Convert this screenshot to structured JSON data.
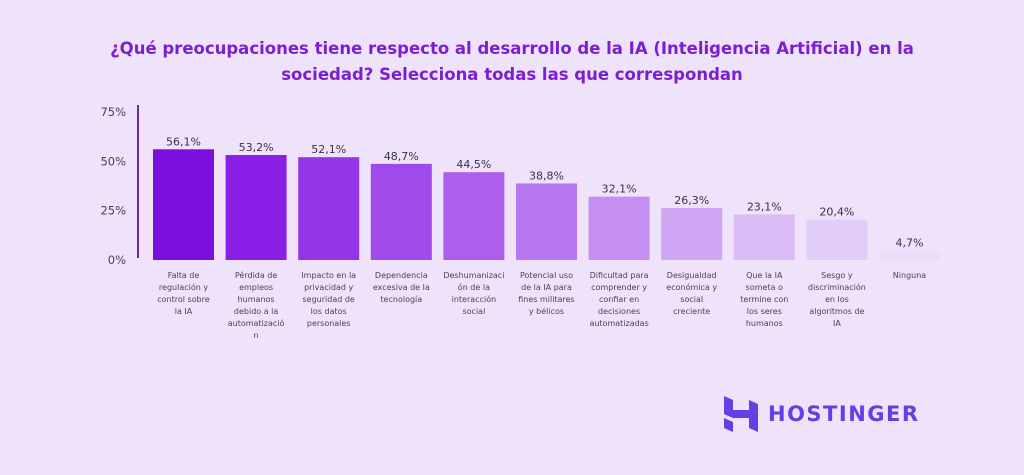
{
  "chart_data": {
    "type": "bar",
    "title": "¿Qué preocupaciones tiene respecto al desarrollo de la IA (Inteligencia Artificial) en la sociedad? Selecciona todas las que correspondan",
    "title_lines": [
      "¿Qué preocupaciones tiene respecto al desarrollo de la IA (Inteligencia Artificial) en la",
      "sociedad? Selecciona todas las que correspondan"
    ],
    "categories": [
      "Falta de\nregulación y\ncontrol sobre\nla IA",
      "Pérdida de\nempleos\nhumanos\ndebido a la\nautomatizació\nn",
      "Impacto en la\nprivacidad y\nseguridad de\nlos datos\npersonales",
      "Dependencia\nexcesiva de la\ntecnología",
      "Deshumanizaci\nón de la\ninteracción\nsocial",
      "Potencial uso\nde la IA para\nfines militares\ny bélicos",
      "Dificultad para\ncomprender y\nconfiar en\ndecisiones\nautomatizadas",
      "Desigualdad\neconómica y\nsocial\ncreciente",
      "Que la IA\nsometa o\ntermine con\nlos seres\nhumanos",
      "Sesgo y\ndiscriminación\nen los\nalgoritmos de\nIA",
      "Ninguna"
    ],
    "values": [
      56.1,
      53.2,
      52.1,
      48.7,
      44.5,
      38.8,
      32.1,
      26.3,
      23.1,
      20.4,
      4.7
    ],
    "value_labels": [
      "56,1%",
      "53,2%",
      "52,1%",
      "48,7%",
      "44,5%",
      "38,8%",
      "32,1%",
      "26,3%",
      "23,1%",
      "20,4%",
      "4,7%"
    ],
    "bar_colors": [
      "#7a0fe0",
      "#8a20e8",
      "#9535e8",
      "#a04ae9",
      "#ab5fea",
      "#b778ef",
      "#c48ef2",
      "#cfa5f4",
      "#dabbf6",
      "#e2cdf8",
      "#eadcfa"
    ],
    "ylim": [
      0,
      75
    ],
    "yticks": [
      0,
      25,
      50,
      75
    ],
    "ytick_labels": [
      "0%",
      "25%",
      "50%",
      "75%"
    ],
    "grid": false,
    "xlabel": "",
    "ylabel": ""
  },
  "brand": {
    "name": "HOSTINGER",
    "color": "#673de6"
  }
}
